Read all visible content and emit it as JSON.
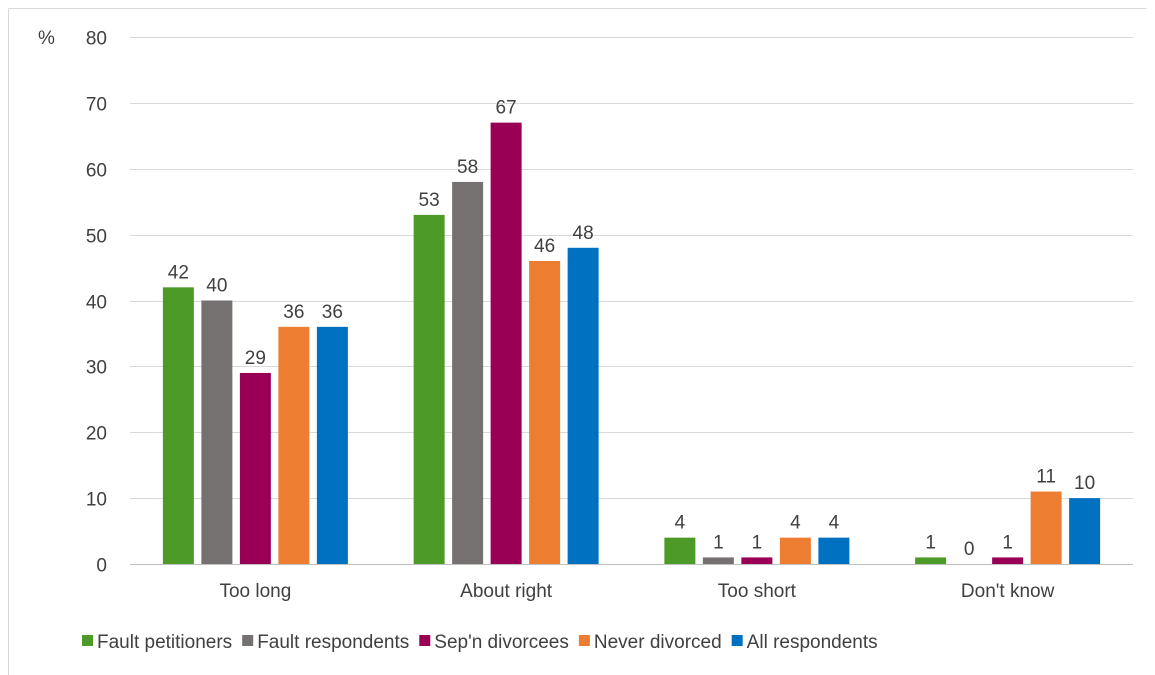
{
  "chart_data": {
    "type": "bar",
    "ylabel": "%",
    "ylim": [
      0,
      80
    ],
    "yticks": [
      0,
      10,
      20,
      30,
      40,
      50,
      60,
      70,
      80
    ],
    "grid": true,
    "legend_position": "bottom",
    "categories": [
      "Too long",
      "About right",
      "Too short",
      "Don't know"
    ],
    "series": [
      {
        "name": "Fault petitioners",
        "color": "#4e9a28",
        "values": [
          42,
          53,
          4,
          1
        ]
      },
      {
        "name": "Fault respondents",
        "color": "#767171",
        "values": [
          40,
          58,
          1,
          0
        ]
      },
      {
        "name": "Sep'n divorcees",
        "color": "#990055",
        "values": [
          29,
          67,
          1,
          1
        ]
      },
      {
        "name": "Never divorced",
        "color": "#ed7d31",
        "values": [
          36,
          46,
          4,
          11
        ]
      },
      {
        "name": "All respondents",
        "color": "#0070c0",
        "values": [
          36,
          48,
          4,
          10
        ]
      }
    ]
  }
}
